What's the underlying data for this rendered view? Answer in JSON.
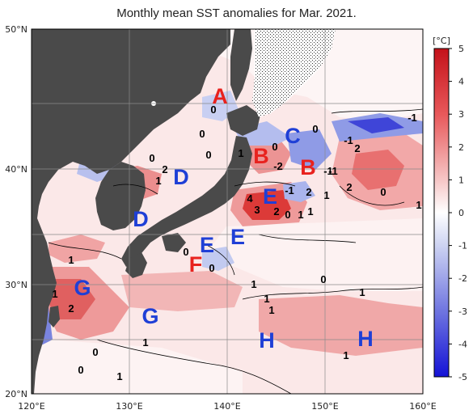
{
  "title": "Monthly mean SST anomalies for Mar. 2021.",
  "colors": {
    "land": "#4a4a4a",
    "warm_label": "#e8221e",
    "cool_label": "#1f3fd6",
    "pale_red": "#f4c8c8",
    "mid_red": "#ec8f8f",
    "deep_red": "#d9302e",
    "pale_blue": "#cfd6f2",
    "mid_blue": "#8d9ae3",
    "deep_blue": "#3c3fd8"
  },
  "axes": {
    "lat_labels": [
      "50°N",
      "40°N",
      "30°N",
      "20°N"
    ],
    "lon_labels": [
      "120°E",
      "130°E",
      "140°E",
      "150°E",
      "160°E"
    ]
  },
  "colorbar": {
    "unit": "[°C]",
    "ticks": [
      "5",
      "4",
      "3",
      "2",
      "1",
      "0",
      "-1",
      "-2",
      "-3",
      "-4",
      "-5"
    ]
  },
  "regions": [
    {
      "letter": "A",
      "color": "warm"
    },
    {
      "letter": "B",
      "color": "warm"
    },
    {
      "letter": "C",
      "color": "cool"
    },
    {
      "letter": "B",
      "color": "warm"
    },
    {
      "letter": "D",
      "color": "cool"
    },
    {
      "letter": "E",
      "color": "cool"
    },
    {
      "letter": "D",
      "color": "cool"
    },
    {
      "letter": "E",
      "color": "cool"
    },
    {
      "letter": "E",
      "color": "cool"
    },
    {
      "letter": "F",
      "color": "warm"
    },
    {
      "letter": "G",
      "color": "cool"
    },
    {
      "letter": "G",
      "color": "cool"
    },
    {
      "letter": "H",
      "color": "cool"
    },
    {
      "letter": "H",
      "color": "cool"
    }
  ],
  "contour_labels": [
    "0",
    "0",
    "-1",
    "-1",
    "2",
    "0",
    "0",
    "2",
    "1",
    "0",
    "-2",
    "-1",
    "2",
    "4",
    "3",
    "2",
    "0",
    "1",
    "1",
    "-1",
    "2",
    "0",
    "1",
    "0",
    "1",
    "1",
    "1",
    "1",
    "2",
    "1",
    "0",
    "1",
    "0",
    "0",
    "1",
    "1",
    "1",
    "1",
    "0",
    "0",
    "-1",
    "1"
  ]
}
